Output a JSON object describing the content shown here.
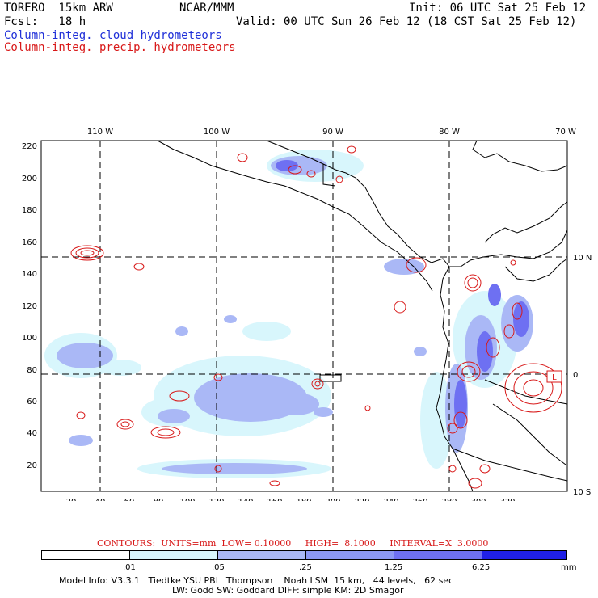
{
  "header": {
    "model": "TORERO  15km ARW",
    "org": "NCAR/MMM",
    "init": "Init: 06 UTC Sat 25 Feb 12",
    "fcst": "Fcst:   18 h",
    "valid": "Valid: 00 UTC Sun 26 Feb 12 (18 CST Sat 25 Feb 12)"
  },
  "legend": {
    "cloud": "Column-integ. cloud hydrometeors",
    "precip": "Column-integ. precip. hydrometeors",
    "cloud_color": "#1f2fd8",
    "precip_color": "#d81818"
  },
  "map": {
    "lon_labels": [
      "110 W",
      "100 W",
      "90 W",
      "80 W",
      "70 W"
    ],
    "lat_labels": [
      "10 N",
      "0",
      "10 S"
    ],
    "y_ticks": [
      "220",
      "200",
      "180",
      "160",
      "140",
      "120",
      "100",
      "80",
      "60",
      "40",
      "20"
    ],
    "x_ticks": [
      "20",
      "40",
      "60",
      "80",
      "100",
      "120",
      "140",
      "160",
      "180",
      "200",
      "220",
      "240",
      "260",
      "280",
      "300",
      "320"
    ],
    "low_marker": "L"
  },
  "contours_line": {
    "label": "CONTOURS:  UNITS=mm  LOW= 0.10000",
    "high": "HIGH=  8.1000",
    "interval": "INTERVAL=X  3.0000"
  },
  "colorbar": {
    "labels": [
      ".01",
      ".05",
      ".25",
      "1.25",
      "6.25"
    ],
    "unit": "mm",
    "colors": [
      "#ffffff",
      "#d8f6fc",
      "#aab8f6",
      "#6e70f2",
      "#2020e6"
    ]
  },
  "footer": {
    "line1": "Model Info: V3.3.1   Tiedtke YSU PBL  Thompson    Noah LSM  15 km,   44 levels,   62 sec",
    "line2": "LW: Godd SW: Goddard DIFF: simple KM: 2D Smagor"
  }
}
